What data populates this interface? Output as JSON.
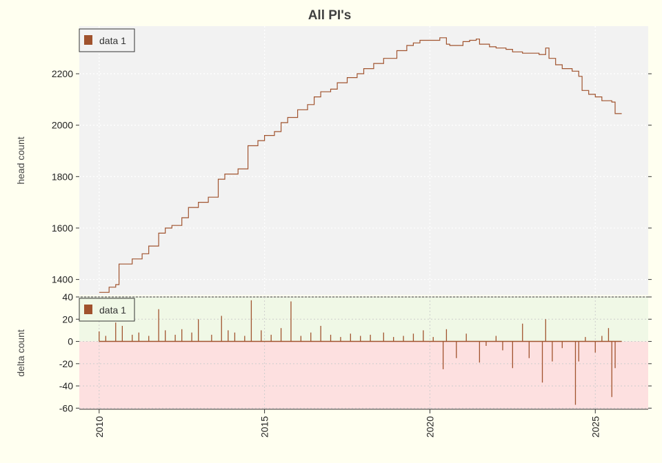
{
  "chart_data": [
    {
      "type": "line",
      "title": "All PI's",
      "xlabel": "",
      "ylabel": "head count",
      "xlim": [
        2009.4,
        2026.6
      ],
      "ylim": [
        1340,
        2385
      ],
      "yticks": [
        1400,
        1600,
        1800,
        2000,
        2200
      ],
      "grid": true,
      "legend": {
        "position": "top-left",
        "entries": [
          "data 1"
        ]
      },
      "series": [
        {
          "name": "data 1",
          "color": "#a0522d",
          "x": [
            2010.0,
            2010.3,
            2010.5,
            2010.6,
            2011.0,
            2011.3,
            2011.5,
            2011.8,
            2012.0,
            2012.2,
            2012.5,
            2012.7,
            2013.0,
            2013.3,
            2013.6,
            2013.8,
            2014.2,
            2014.5,
            2014.8,
            2015.0,
            2015.3,
            2015.5,
            2015.7,
            2016.0,
            2016.3,
            2016.5,
            2016.7,
            2017.0,
            2017.2,
            2017.5,
            2017.8,
            2018.0,
            2018.3,
            2018.6,
            2019.0,
            2019.3,
            2019.5,
            2019.7,
            2020.0,
            2020.3,
            2020.5,
            2020.6,
            2021.0,
            2021.2,
            2021.4,
            2021.5,
            2021.8,
            2022.0,
            2022.3,
            2022.5,
            2022.8,
            2023.0,
            2023.3,
            2023.5,
            2023.6,
            2023.8,
            2024.0,
            2024.3,
            2024.5,
            2024.6,
            2024.8,
            2025.0,
            2025.2,
            2025.5,
            2025.6,
            2025.8
          ],
          "y": [
            1350,
            1370,
            1380,
            1460,
            1480,
            1500,
            1530,
            1580,
            1600,
            1610,
            1640,
            1680,
            1700,
            1720,
            1790,
            1810,
            1830,
            1920,
            1940,
            1960,
            1975,
            2010,
            2030,
            2060,
            2080,
            2110,
            2130,
            2140,
            2165,
            2185,
            2200,
            2220,
            2240,
            2260,
            2290,
            2310,
            2320,
            2330,
            2330,
            2340,
            2315,
            2310,
            2325,
            2330,
            2335,
            2315,
            2305,
            2300,
            2295,
            2285,
            2280,
            2280,
            2275,
            2300,
            2260,
            2235,
            2220,
            2210,
            2190,
            2135,
            2120,
            2110,
            2095,
            2090,
            2045,
            2045
          ]
        }
      ]
    },
    {
      "type": "bar",
      "title": "",
      "xlabel": "",
      "ylabel": "delta count",
      "xlim": [
        2009.4,
        2026.6
      ],
      "ylim": [
        -61,
        40
      ],
      "yticks": [
        40,
        20,
        0,
        -20,
        -40,
        -60
      ],
      "xticks": [
        "2010",
        "2015",
        "2020",
        "2025"
      ],
      "grid": true,
      "legend": {
        "position": "top-left",
        "entries": [
          "data 1"
        ]
      },
      "series": [
        {
          "name": "data 1",
          "color": "#a0522d",
          "x": [
            2010.0,
            2010.2,
            2010.5,
            2010.7,
            2011.0,
            2011.2,
            2011.5,
            2011.8,
            2012.0,
            2012.3,
            2012.5,
            2012.8,
            2013.0,
            2013.4,
            2013.7,
            2013.9,
            2014.1,
            2014.4,
            2014.6,
            2014.9,
            2015.2,
            2015.5,
            2015.8,
            2016.1,
            2016.4,
            2016.7,
            2017.0,
            2017.3,
            2017.6,
            2017.9,
            2018.2,
            2018.6,
            2018.9,
            2019.2,
            2019.5,
            2019.8,
            2020.1,
            2020.4,
            2020.5,
            2020.8,
            2021.1,
            2021.5,
            2021.7,
            2022.0,
            2022.2,
            2022.5,
            2022.8,
            2023.0,
            2023.4,
            2023.5,
            2023.7,
            2024.0,
            2024.4,
            2024.5,
            2024.7,
            2025.0,
            2025.2,
            2025.4,
            2025.5,
            2025.6
          ],
          "values": [
            9,
            5,
            17,
            14,
            6,
            8,
            5,
            29,
            10,
            6,
            11,
            8,
            20,
            6,
            23,
            10,
            8,
            5,
            37,
            10,
            6,
            12,
            36,
            5,
            8,
            14,
            6,
            4,
            7,
            5,
            6,
            8,
            4,
            5,
            7,
            10,
            4,
            -25,
            11,
            -15,
            7,
            -19,
            -4,
            5,
            -8,
            -24,
            16,
            -15,
            -37,
            20,
            -18,
            -6,
            -57,
            -18,
            4,
            -10,
            5,
            12,
            -50,
            -24
          ]
        }
      ]
    }
  ]
}
